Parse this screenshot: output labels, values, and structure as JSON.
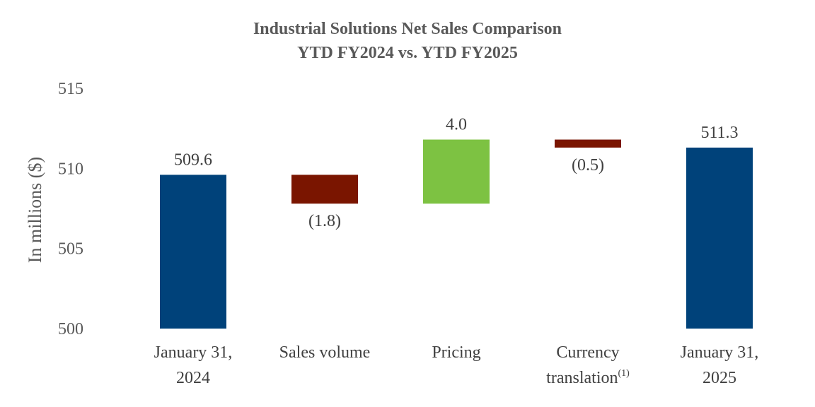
{
  "chart_data": {
    "type": "bar",
    "subtype": "waterfall",
    "title": "Industrial Solutions Net Sales Comparison",
    "subtitle": "YTD FY2024 vs. YTD FY2025",
    "ylabel": "In millions ($)",
    "ylim": [
      500,
      515
    ],
    "yticks": [
      "500",
      "505",
      "510",
      "515"
    ],
    "grid": false,
    "categories": [
      {
        "lines": [
          "January 31,",
          "2024"
        ],
        "sup": ""
      },
      {
        "lines": [
          "Sales volume"
        ],
        "sup": ""
      },
      {
        "lines": [
          "Pricing"
        ],
        "sup": ""
      },
      {
        "lines": [
          "Currency",
          "translation"
        ],
        "sup": "(1)"
      },
      {
        "lines": [
          "January 31,",
          "2025"
        ],
        "sup": ""
      }
    ],
    "bars": [
      {
        "kind": "total",
        "base": 500,
        "value": 509.6,
        "label": "509.6",
        "color": "#00427a"
      },
      {
        "kind": "decrease",
        "base": 509.6,
        "value": 507.8,
        "label": "(1.8)",
        "color": "#7a1500"
      },
      {
        "kind": "increase",
        "base": 507.8,
        "value": 511.8,
        "label": "4.0",
        "color": "#7dc242"
      },
      {
        "kind": "decrease",
        "base": 511.8,
        "value": 511.3,
        "label": "(0.5)",
        "color": "#7a1500"
      },
      {
        "kind": "total",
        "base": 500,
        "value": 511.3,
        "label": "511.3",
        "color": "#00427a"
      }
    ]
  }
}
